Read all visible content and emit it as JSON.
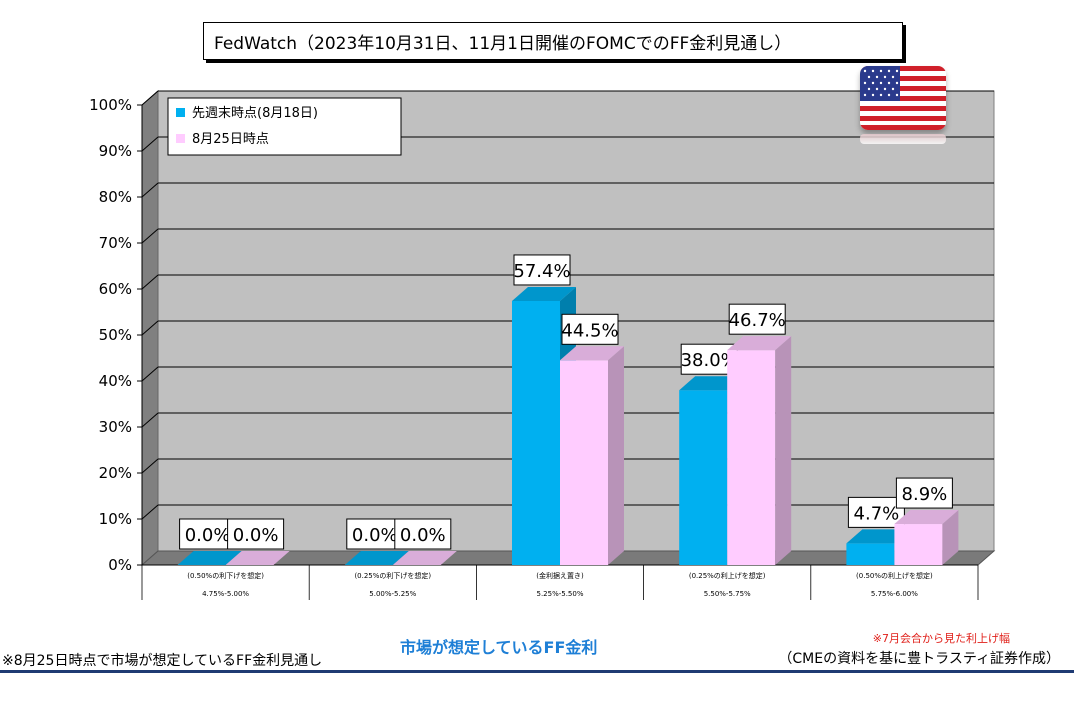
{
  "chart_data": {
    "type": "bar",
    "title": "FedWatch（2023年10月31日、11月1日開催のFOMCでのFF金利見通し）",
    "categories": [
      {
        "note": "(0.50%の利下げを想定)",
        "range": "4.75%-5.00%"
      },
      {
        "note": "(0.25%の利下げを想定)",
        "range": "5.00%-5.25%"
      },
      {
        "note": "(金利据え置き)",
        "range": "5.25%-5.50%"
      },
      {
        "note": "(0.25%の利上げを想定)",
        "range": "5.50%-5.75%"
      },
      {
        "note": "(0.50%の利上げを想定)",
        "range": "5.75%-6.00%"
      }
    ],
    "series": [
      {
        "name": "先週末時点(8月18日)",
        "color": "#00b0f0",
        "values": [
          0.0,
          0.0,
          57.4,
          38.0,
          4.7
        ],
        "labels": [
          "0.0%",
          "0.0%",
          "57.4%",
          "38.0%",
          "4.7%"
        ]
      },
      {
        "name": "8月25日時点",
        "color": "#ffccff",
        "values": [
          0.0,
          0.0,
          44.5,
          46.7,
          8.9
        ],
        "labels": [
          "0.0%",
          "0.0%",
          "44.5%",
          "46.7%",
          "8.9%"
        ]
      }
    ],
    "ylim": [
      0,
      100
    ],
    "yticks": [
      "0%",
      "10%",
      "20%",
      "30%",
      "40%",
      "50%",
      "60%",
      "70%",
      "80%",
      "90%",
      "100%"
    ],
    "grid": true,
    "legend": "top-left"
  },
  "footer": {
    "left_note": "※8月25日時点で市場が想定しているFF金利見通し",
    "center_label": "市場が想定しているFF金利",
    "right_note": "※7月会合から見た利上げ幅",
    "source": "（CMEの資料を基に豊トラスティ証券作成）"
  },
  "flag": {
    "icon": "us-flag-icon"
  }
}
